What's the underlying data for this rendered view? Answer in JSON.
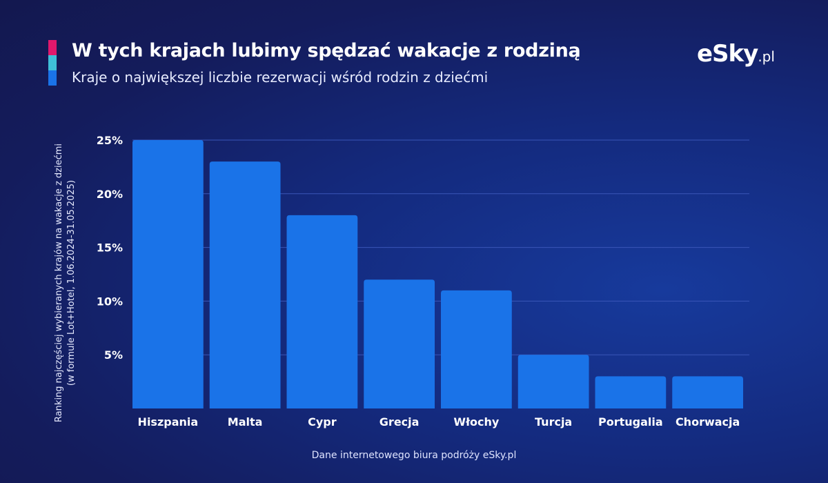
{
  "header": {
    "title": "W tych krajach lubimy spędzać wakacje z rodziną",
    "subtitle": "Kraje o największej liczbie rezerwacji wśród rodzin z dziećmi",
    "accent_colors": [
      "#e0186c",
      "#3fc0d8",
      "#1a73e8"
    ]
  },
  "logo": {
    "text": "eSky",
    ".pl": ".pl",
    "domain": ".pl"
  },
  "source": "Dane internetowego biura podróży eSky.pl",
  "chart_data": {
    "type": "bar",
    "title": "W tych krajach lubimy spędzać wakacje z rodziną",
    "ylabel_line1": "Ranking najczęściej wybieranych krajów na wakacje z dziećmi",
    "ylabel_line2": "(w formule Lot+Hotel, 1.06.2024-31.05.2025)",
    "categories": [
      "Hiszpania",
      "Malta",
      "Cypr",
      "Grecja",
      "Włochy",
      "Turcja",
      "Portugalia",
      "Chorwacja"
    ],
    "values": [
      25,
      23,
      18,
      12,
      11,
      5,
      3,
      3
    ],
    "unit": "%",
    "ylim": [
      0,
      25
    ],
    "yticks": [
      5,
      10,
      15,
      20,
      25
    ],
    "ytick_labels": [
      "5%",
      "10%",
      "15%",
      "20%",
      "25%"
    ],
    "grid": true,
    "bar_color": "#1a73e8"
  }
}
